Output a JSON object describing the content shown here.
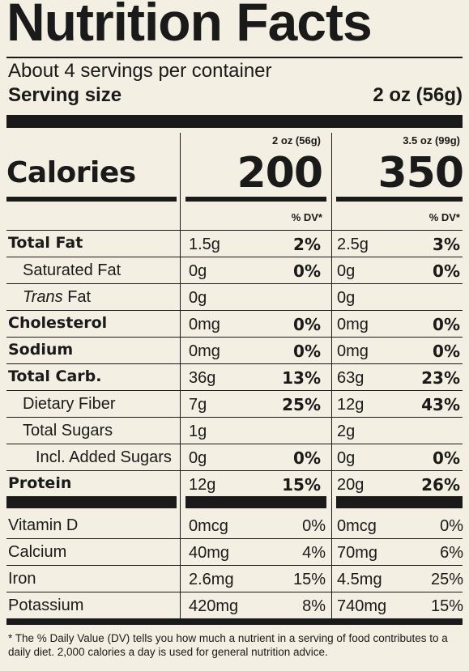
{
  "title": "Nutrition Facts",
  "servings_per_container": "About 4 servings per container",
  "serving_size_label": "Serving size",
  "serving_size_value": "2 oz (56g)",
  "columns": [
    {
      "serving": "2 oz (56g)",
      "calories": "200"
    },
    {
      "serving": "3.5 oz (99g)",
      "calories": "350"
    }
  ],
  "calories_label": "Calories",
  "dv_label": "% DV*",
  "nutrients": [
    {
      "name": "Total Fat",
      "bold": true,
      "indent": 0,
      "a_amt": "1.5g",
      "a_dv": "2%",
      "b_amt": "2.5g",
      "b_dv": "3%"
    },
    {
      "name": "Saturated Fat",
      "bold": false,
      "indent": 1,
      "a_amt": "0g",
      "a_dv": "0%",
      "b_amt": "0g",
      "b_dv": "0%"
    },
    {
      "name_italic": "Trans",
      "name": " Fat",
      "bold": false,
      "indent": 1,
      "a_amt": "0g",
      "a_dv": "",
      "b_amt": "0g",
      "b_dv": ""
    },
    {
      "name": "Cholesterol",
      "bold": true,
      "indent": 0,
      "a_amt": "0mg",
      "a_dv": "0%",
      "b_amt": "0mg",
      "b_dv": "0%"
    },
    {
      "name": "Sodium",
      "bold": true,
      "indent": 0,
      "a_amt": "0mg",
      "a_dv": "0%",
      "b_amt": "0mg",
      "b_dv": "0%"
    },
    {
      "name": "Total Carb.",
      "bold": true,
      "indent": 0,
      "a_amt": "36g",
      "a_dv": "13%",
      "b_amt": "63g",
      "b_dv": "23%"
    },
    {
      "name": "Dietary Fiber",
      "bold": false,
      "indent": 1,
      "a_amt": "7g",
      "a_dv": "25%",
      "b_amt": "12g",
      "b_dv": "43%"
    },
    {
      "name": "Total Sugars",
      "bold": false,
      "indent": 1,
      "a_amt": "1g",
      "a_dv": "",
      "b_amt": "2g",
      "b_dv": ""
    },
    {
      "name": "Incl. Added Sugars",
      "bold": false,
      "indent": 2,
      "a_amt": "0g",
      "a_dv": "0%",
      "b_amt": "0g",
      "b_dv": "0%"
    },
    {
      "name": "Protein",
      "bold": true,
      "indent": 0,
      "a_amt": "12g",
      "a_dv": "15%",
      "b_amt": "20g",
      "b_dv": "26%"
    }
  ],
  "vitamins": [
    {
      "name": "Vitamin D",
      "a_amt": "0mcg",
      "a_dv": "0%",
      "b_amt": "0mcg",
      "b_dv": "0%"
    },
    {
      "name": "Calcium",
      "a_amt": "40mg",
      "a_dv": "4%",
      "b_amt": "70mg",
      "b_dv": "6%"
    },
    {
      "name": "Iron",
      "a_amt": "2.6mg",
      "a_dv": "15%",
      "b_amt": "4.5mg",
      "b_dv": "25%"
    },
    {
      "name": "Potassium",
      "a_amt": "420mg",
      "a_dv": "8%",
      "b_amt": "740mg",
      "b_dv": "15%"
    }
  ],
  "footnote": "* The % Daily Value (DV) tells you how much a nutrient in a serving of food contributes to a daily diet. 2,000 calories a day is used for general nutrition advice."
}
